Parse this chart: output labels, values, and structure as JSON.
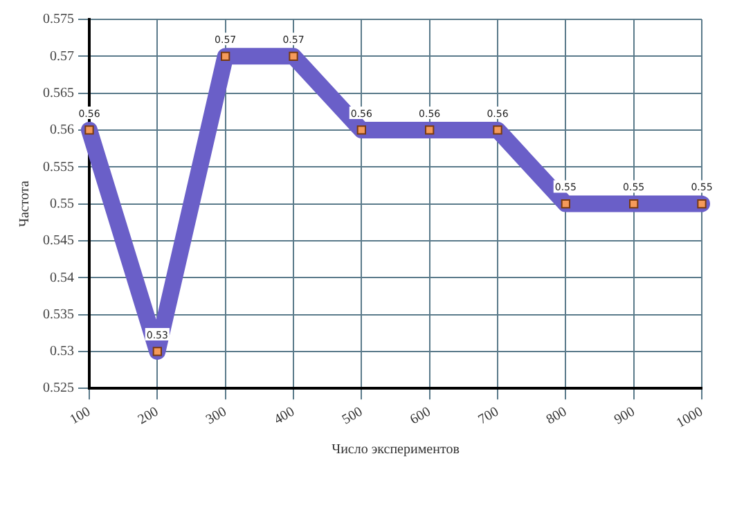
{
  "chart_data": {
    "type": "line",
    "xlabel": "Число экспериментов",
    "ylabel": "Частота",
    "categories": [
      "100",
      "200",
      "300",
      "400",
      "500",
      "600",
      "700",
      "800",
      "900",
      "1000"
    ],
    "series": [
      {
        "color": "#6a5fc8",
        "values": [
          0.56,
          0.53,
          0.57,
          0.57,
          0.56,
          0.56,
          0.56,
          0.55,
          0.55,
          0.55
        ]
      }
    ],
    "ylim": [
      0.525,
      0.575
    ],
    "yticks": [
      0.525,
      0.53,
      0.535,
      0.54,
      0.545,
      0.55,
      0.555,
      0.56,
      0.565,
      0.57,
      0.575
    ],
    "grid": true,
    "legend": false,
    "marker": "square",
    "line_style": "solid",
    "data_labels": true
  }
}
